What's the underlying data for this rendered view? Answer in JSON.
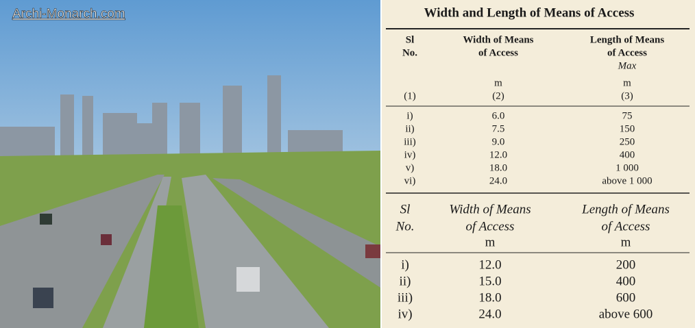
{
  "watermark": "Archi-Monarch.com",
  "table1": {
    "title": "Width and Length of Means of Access",
    "columns": [
      {
        "lines": [
          "Sl",
          "No."
        ],
        "number": "(1)"
      },
      {
        "lines": [
          "Width of Means",
          "of Access"
        ],
        "unit": "m",
        "number": "(2)"
      },
      {
        "lines": [
          "Length of Means",
          "of Access"
        ],
        "note": "Max",
        "unit": "m",
        "number": "(3)"
      }
    ],
    "rows": [
      [
        "i)",
        "6.0",
        "75"
      ],
      [
        "ii)",
        "7.5",
        "150"
      ],
      [
        "iii)",
        "9.0",
        "250"
      ],
      [
        "iv)",
        "12.0",
        "400"
      ],
      [
        "v)",
        "18.0",
        "1 000"
      ],
      [
        "vi)",
        "24.0",
        "above 1 000"
      ]
    ]
  },
  "table2": {
    "columns": [
      {
        "lines": [
          "Sl",
          "No."
        ]
      },
      {
        "lines": [
          "Width of Means",
          "of Access"
        ],
        "unit": "m"
      },
      {
        "lines": [
          "Length of Means",
          "of Access"
        ],
        "unit": "m"
      }
    ],
    "rows": [
      [
        "i)",
        "12.0",
        "200"
      ],
      [
        "ii)",
        "15.0",
        "400"
      ],
      [
        "iii)",
        "18.0",
        "600"
      ],
      [
        "iv)",
        "24.0",
        "above 600"
      ]
    ]
  }
}
